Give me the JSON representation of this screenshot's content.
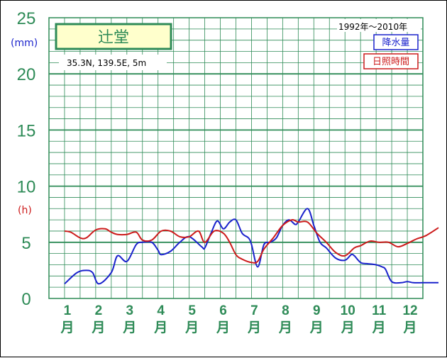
{
  "chart_data": {
    "type": "line",
    "left_axis_unit": "(mm)",
    "right_axis_unit": "(h)",
    "ylim": [
      0,
      25
    ],
    "yticks": [
      0,
      5,
      10,
      15,
      20,
      25
    ],
    "categories": [
      "1",
      "2",
      "3",
      "4",
      "5",
      "6",
      "7",
      "8",
      "9",
      "10",
      "11",
      "12"
    ],
    "month_char": "月",
    "station_name": "辻堂",
    "location_text": "35.3N,  139.5E,  5m",
    "period_text": "1992年〜2010年",
    "series": [
      {
        "name": "降水量",
        "color": "#1a22cc",
        "x": [
          0.5,
          0.9,
          1.2,
          1.4,
          1.6,
          2.0,
          2.2,
          2.5,
          2.8,
          3.0,
          3.3,
          3.5,
          3.6,
          3.9,
          4.2,
          4.5,
          4.9,
          5.0,
          5.2,
          5.4,
          5.6,
          5.8,
          6.0,
          6.2,
          6.4,
          6.5,
          6.7,
          6.9,
          7.1,
          7.3,
          7.5,
          7.7,
          7.9,
          8.0,
          8.3,
          8.5,
          8.7,
          8.9,
          9.2,
          9.5,
          9.7,
          9.8,
          10.0,
          10.2,
          10.5,
          10.7,
          10.8,
          11.0,
          11.3,
          11.5,
          11.7,
          12.0,
          12.3,
          12.5
        ],
        "values": [
          1.3,
          2.3,
          2.5,
          2.3,
          1.3,
          2.3,
          3.8,
          3.3,
          4.8,
          5.0,
          5.0,
          4.3,
          3.9,
          4.2,
          5.0,
          5.5,
          4.6,
          4.5,
          5.8,
          6.9,
          6.2,
          6.8,
          7.0,
          5.8,
          5.4,
          4.8,
          2.8,
          4.8,
          5.0,
          5.4,
          6.5,
          7.0,
          6.6,
          6.8,
          8.0,
          6.5,
          5.0,
          4.5,
          3.6,
          3.4,
          3.9,
          3.8,
          3.2,
          3.1,
          3.0,
          2.8,
          2.6,
          1.5,
          1.4,
          1.5,
          1.4,
          1.4,
          1.4,
          1.4
        ]
      },
      {
        "name": "日照時間",
        "color": "#cc1a1a",
        "x": [
          0.5,
          0.7,
          1.0,
          1.2,
          1.5,
          1.8,
          2.0,
          2.2,
          2.5,
          2.8,
          3.0,
          3.3,
          3.6,
          3.9,
          4.2,
          4.5,
          4.8,
          5.0,
          5.3,
          5.6,
          5.8,
          6.0,
          6.2,
          6.5,
          6.7,
          6.9,
          7.2,
          7.5,
          7.8,
          8.0,
          8.3,
          8.6,
          8.9,
          9.2,
          9.5,
          9.8,
          10.0,
          10.3,
          10.6,
          10.9,
          11.2,
          11.5,
          11.8,
          12.1,
          12.5
        ],
        "values": [
          6.0,
          5.9,
          5.4,
          5.4,
          6.1,
          6.2,
          5.9,
          5.7,
          5.7,
          5.9,
          5.2,
          5.2,
          6.0,
          6.0,
          5.5,
          5.5,
          6.0,
          5.0,
          6.0,
          5.8,
          5.0,
          3.9,
          3.5,
          3.2,
          3.3,
          4.4,
          5.4,
          6.5,
          7.0,
          6.8,
          6.8,
          5.8,
          5.0,
          4.1,
          3.8,
          4.5,
          4.7,
          5.1,
          5.0,
          5.0,
          4.6,
          4.9,
          5.3,
          5.6,
          6.3
        ]
      }
    ]
  }
}
